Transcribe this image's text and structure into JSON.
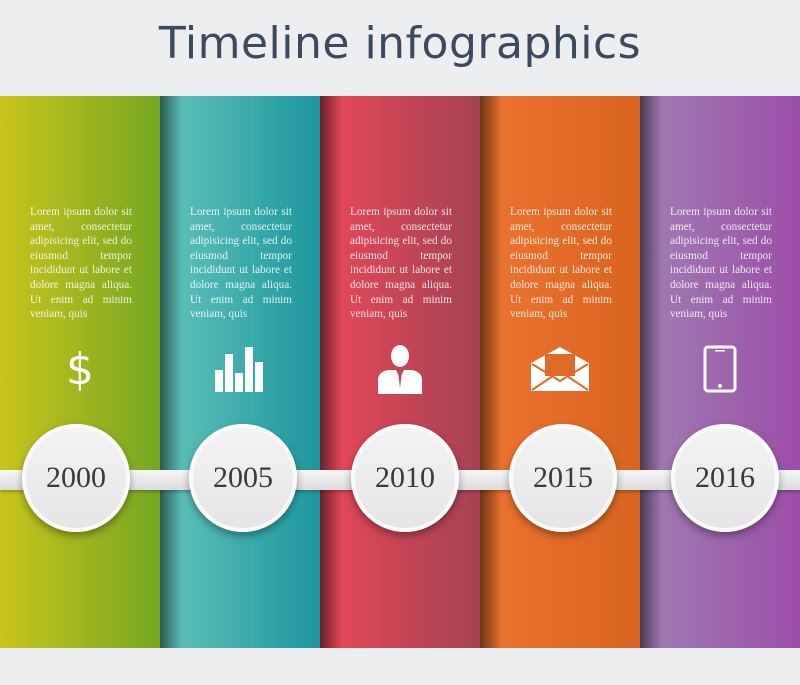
{
  "title": "Timeline infographics",
  "paragraph": "Lorem ipsum dolor sit amet, consectetur adipisicing elit, sed do eiusmod tempor incididunt ut labore et dolore magna aliqua. Ut enim ad minim veniam, quis",
  "steps": [
    {
      "year": "2000",
      "icon": "dollar-icon",
      "colors": [
        "#c9c41c",
        "#76a722"
      ]
    },
    {
      "year": "2005",
      "icon": "bar-chart-icon",
      "colors": [
        "#63c3bb",
        "#1c979e"
      ]
    },
    {
      "year": "2010",
      "icon": "person-icon",
      "colors": [
        "#ea4858",
        "#a44352"
      ]
    },
    {
      "year": "2015",
      "icon": "envelope-icon",
      "colors": [
        "#ee7430",
        "#d8641f"
      ]
    },
    {
      "year": "2016",
      "icon": "smartphone-icon",
      "colors": [
        "#a07fb2",
        "#9b4ea8"
      ]
    }
  ]
}
